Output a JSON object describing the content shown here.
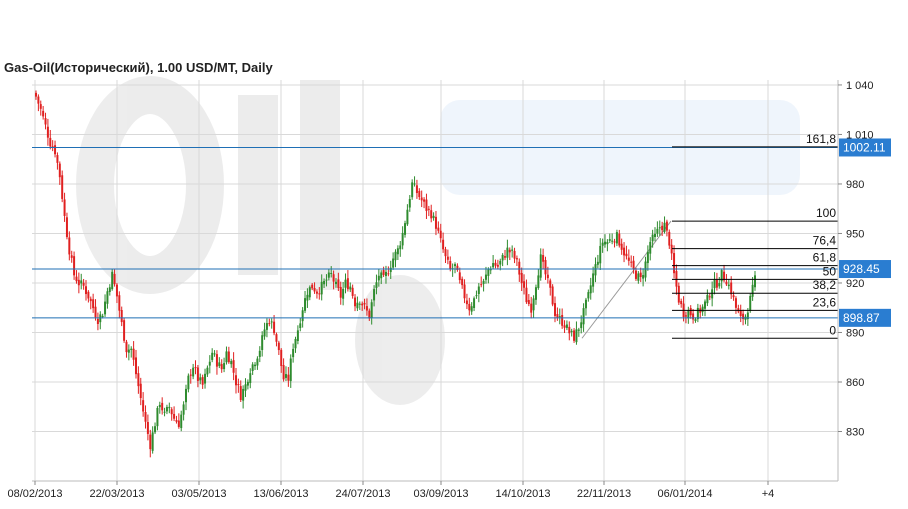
{
  "chart_data": {
    "type": "candlestick",
    "title": "Gas-Oil(Исторический), 1.00 USD/MT, Daily",
    "x_tick_labels": [
      "08/02/2013",
      "22/03/2013",
      "03/05/2013",
      "13/06/2013",
      "24/07/2013",
      "03/09/2013",
      "14/10/2013",
      "22/11/2013",
      "06/01/2014",
      "+4"
    ],
    "y_tick_labels": [
      "1 040",
      "1 010",
      "980",
      "950",
      "920",
      "890",
      "860",
      "830"
    ],
    "y_ticks": [
      1040,
      1010,
      980,
      950,
      920,
      890,
      860,
      830
    ],
    "ylim": [
      800,
      1043
    ],
    "colors": {
      "up": "#2e8b2e",
      "down": "#e02020",
      "hline": "#1f6fb5",
      "hline_label_bg": "#2a7dd1",
      "grid": "#d9d9d9",
      "fib": "#000000",
      "trend": "#999999"
    },
    "horizontal_lines": [
      {
        "value": 1002.11,
        "label": "1002.11"
      },
      {
        "value": 928.45,
        "label": "928.45"
      },
      {
        "value": 898.87,
        "label": "898.87"
      }
    ],
    "fibonacci": {
      "start_value": 886.5,
      "end_value": 957.5,
      "levels": [
        {
          "label": "161,8",
          "value": 1002.5
        },
        {
          "label": "100",
          "value": 957.5
        },
        {
          "label": "76,4",
          "value": 940.8
        },
        {
          "label": "61,8",
          "value": 930.5
        },
        {
          "label": "50",
          "value": 922.2
        },
        {
          "label": "38,2",
          "value": 913.8
        },
        {
          "label": "23,6",
          "value": 903.4
        },
        {
          "label": "0",
          "value": 886.5
        }
      ]
    },
    "series_anchors": [
      [
        0,
        1033
      ],
      [
        2,
        1025
      ],
      [
        4,
        1015
      ],
      [
        6,
        1005
      ],
      [
        8,
        1000
      ],
      [
        10,
        985
      ],
      [
        12,
        960
      ],
      [
        14,
        940
      ],
      [
        16,
        925
      ],
      [
        18,
        920
      ],
      [
        20,
        918
      ],
      [
        22,
        912
      ],
      [
        24,
        905
      ],
      [
        26,
        898
      ],
      [
        28,
        902
      ],
      [
        30,
        915
      ],
      [
        32,
        925
      ],
      [
        34,
        912
      ],
      [
        36,
        895
      ],
      [
        38,
        880
      ],
      [
        40,
        880
      ],
      [
        42,
        865
      ],
      [
        44,
        850
      ],
      [
        46,
        835
      ],
      [
        48,
        822
      ],
      [
        50,
        835
      ],
      [
        52,
        848
      ],
      [
        54,
        840
      ],
      [
        56,
        845
      ],
      [
        58,
        838
      ],
      [
        60,
        835
      ],
      [
        62,
        845
      ],
      [
        64,
        862
      ],
      [
        66,
        870
      ],
      [
        68,
        862
      ],
      [
        70,
        858
      ],
      [
        72,
        868
      ],
      [
        74,
        878
      ],
      [
        76,
        872
      ],
      [
        78,
        868
      ],
      [
        80,
        878
      ],
      [
        82,
        872
      ],
      [
        84,
        860
      ],
      [
        86,
        852
      ],
      [
        88,
        858
      ],
      [
        90,
        868
      ],
      [
        92,
        873
      ],
      [
        94,
        880
      ],
      [
        96,
        892
      ],
      [
        98,
        898
      ],
      [
        100,
        892
      ],
      [
        102,
        878
      ],
      [
        104,
        862
      ],
      [
        106,
        862
      ],
      [
        108,
        882
      ],
      [
        110,
        892
      ],
      [
        112,
        905
      ],
      [
        114,
        915
      ],
      [
        116,
        918
      ],
      [
        118,
        915
      ],
      [
        120,
        918
      ],
      [
        122,
        922
      ],
      [
        124,
        925
      ],
      [
        126,
        918
      ],
      [
        128,
        912
      ],
      [
        130,
        920
      ],
      [
        132,
        918
      ],
      [
        134,
        908
      ],
      [
        136,
        910
      ],
      [
        138,
        905
      ],
      [
        140,
        900
      ],
      [
        142,
        915
      ],
      [
        144,
        925
      ],
      [
        146,
        922
      ],
      [
        148,
        928
      ],
      [
        150,
        935
      ],
      [
        152,
        940
      ],
      [
        154,
        950
      ],
      [
        156,
        965
      ],
      [
        158,
        980
      ],
      [
        160,
        975
      ],
      [
        162,
        970
      ],
      [
        164,
        965
      ],
      [
        166,
        962
      ],
      [
        168,
        955
      ],
      [
        170,
        945
      ],
      [
        172,
        935
      ],
      [
        174,
        928
      ],
      [
        176,
        930
      ],
      [
        178,
        920
      ],
      [
        180,
        912
      ],
      [
        182,
        905
      ],
      [
        184,
        910
      ],
      [
        186,
        918
      ],
      [
        188,
        920
      ],
      [
        190,
        928
      ],
      [
        192,
        932
      ],
      [
        194,
        930
      ],
      [
        196,
        935
      ],
      [
        198,
        940
      ],
      [
        200,
        938
      ],
      [
        202,
        932
      ],
      [
        204,
        920
      ],
      [
        206,
        910
      ],
      [
        208,
        905
      ],
      [
        210,
        920
      ],
      [
        212,
        935
      ],
      [
        214,
        925
      ],
      [
        216,
        915
      ],
      [
        218,
        902
      ],
      [
        220,
        898
      ],
      [
        222,
        895
      ],
      [
        224,
        890
      ],
      [
        226,
        887
      ],
      [
        228,
        893
      ],
      [
        230,
        902
      ],
      [
        232,
        912
      ],
      [
        234,
        925
      ],
      [
        236,
        935
      ],
      [
        238,
        945
      ],
      [
        240,
        945
      ],
      [
        242,
        947
      ],
      [
        244,
        948
      ],
      [
        246,
        942
      ],
      [
        248,
        935
      ],
      [
        250,
        930
      ],
      [
        252,
        925
      ],
      [
        254,
        922
      ],
      [
        256,
        932
      ],
      [
        258,
        945
      ],
      [
        260,
        948
      ],
      [
        262,
        954
      ],
      [
        264,
        955
      ],
      [
        266,
        945
      ],
      [
        268,
        925
      ],
      [
        270,
        910
      ],
      [
        272,
        902
      ],
      [
        274,
        903
      ],
      [
        276,
        900
      ],
      [
        278,
        902
      ],
      [
        280,
        905
      ],
      [
        282,
        910
      ],
      [
        284,
        918
      ],
      [
        286,
        920
      ],
      [
        288,
        925
      ],
      [
        290,
        922
      ],
      [
        292,
        915
      ],
      [
        294,
        905
      ],
      [
        296,
        898
      ],
      [
        298,
        900
      ],
      [
        300,
        910
      ],
      [
        302,
        922
      ]
    ]
  }
}
